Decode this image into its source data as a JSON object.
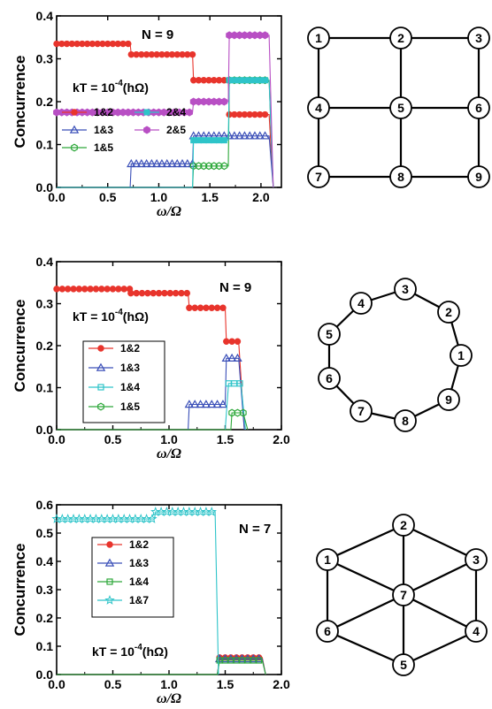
{
  "chart_data": [
    {
      "type": "line",
      "xlabel": "ω/Ω",
      "ylabel": "Concurrence",
      "xlim": [
        0,
        2.2
      ],
      "ylim": [
        0,
        0.4
      ],
      "xticks": [
        "0.0",
        "0.5",
        "1.0",
        "1.5",
        "2.0"
      ],
      "yticks": [
        "0.0",
        "0.1",
        "0.2",
        "0.3",
        "0.4"
      ],
      "annotations": [
        "N = 9",
        "kT = 10",
        "-4",
        "(hΩ)"
      ],
      "series": [
        {
          "name": "1&2",
          "color": "#e8342c",
          "marker": "circle-filled",
          "points": [
            [
              0.0,
              0.335
            ],
            [
              0.72,
              0.335
            ],
            [
              0.73,
              0.31
            ],
            [
              1.33,
              0.31
            ],
            [
              1.34,
              0.25
            ],
            [
              1.68,
              0.25
            ],
            [
              1.69,
              0.17
            ],
            [
              2.08,
              0.17
            ],
            [
              2.12,
              0.0
            ]
          ]
        },
        {
          "name": "1&3",
          "color": "#3a4fb8",
          "marker": "triangle-open",
          "points": [
            [
              0.0,
              0.0
            ],
            [
              0.72,
              0.0
            ],
            [
              0.73,
              0.055
            ],
            [
              1.33,
              0.055
            ],
            [
              1.34,
              0.12
            ],
            [
              2.08,
              0.12
            ],
            [
              2.12,
              0.0
            ]
          ]
        },
        {
          "name": "1&5",
          "color": "#2da83a",
          "marker": "hexagon-open",
          "points": [
            [
              0.0,
              0.0
            ],
            [
              1.33,
              0.0
            ],
            [
              1.34,
              0.05
            ],
            [
              1.68,
              0.05
            ],
            [
              1.69,
              0.25
            ],
            [
              2.08,
              0.25
            ],
            [
              2.12,
              0.0
            ]
          ]
        },
        {
          "name": "2&4",
          "color": "#2ec4c9",
          "marker": "square-filled",
          "points": [
            [
              0.0,
              0.0
            ],
            [
              1.33,
              0.0
            ],
            [
              1.34,
              0.11
            ],
            [
              1.68,
              0.11
            ],
            [
              1.69,
              0.25
            ],
            [
              2.08,
              0.25
            ],
            [
              2.12,
              0.0
            ]
          ]
        },
        {
          "name": "2&5",
          "color": "#b84fc4",
          "marker": "hexagon-filled",
          "points": [
            [
              0.0,
              0.175
            ],
            [
              1.33,
              0.175
            ],
            [
              1.34,
              0.2
            ],
            [
              1.68,
              0.2
            ],
            [
              1.69,
              0.355
            ],
            [
              2.08,
              0.355
            ],
            [
              2.12,
              0.0
            ]
          ]
        }
      ],
      "legend_position": "lower-left"
    },
    {
      "type": "line",
      "xlabel": "ω/Ω",
      "ylabel": "Concurrence",
      "xlim": [
        0,
        2.0
      ],
      "ylim": [
        0,
        0.4
      ],
      "xticks": [
        "0.0",
        "0.5",
        "1.0",
        "1.5",
        "2.0"
      ],
      "yticks": [
        "0.0",
        "0.1",
        "0.2",
        "0.3",
        "0.4"
      ],
      "annotations": [
        "N = 9",
        "kT = 10",
        "-4",
        "(hΩ)"
      ],
      "series": [
        {
          "name": "1&2",
          "color": "#e8342c",
          "marker": "circle-filled",
          "points": [
            [
              0.0,
              0.335
            ],
            [
              0.65,
              0.335
            ],
            [
              0.66,
              0.325
            ],
            [
              1.17,
              0.325
            ],
            [
              1.18,
              0.29
            ],
            [
              1.5,
              0.29
            ],
            [
              1.51,
              0.21
            ],
            [
              1.62,
              0.21
            ],
            [
              1.67,
              0.0
            ]
          ]
        },
        {
          "name": "1&3",
          "color": "#3a4fb8",
          "marker": "triangle-open",
          "points": [
            [
              0.0,
              0.0
            ],
            [
              1.17,
              0.0
            ],
            [
              1.18,
              0.06
            ],
            [
              1.5,
              0.06
            ],
            [
              1.51,
              0.17
            ],
            [
              1.62,
              0.17
            ],
            [
              1.67,
              0.0
            ]
          ]
        },
        {
          "name": "1&4",
          "color": "#2ec4c9",
          "marker": "square-open",
          "points": [
            [
              0.0,
              0.0
            ],
            [
              1.5,
              0.0
            ],
            [
              1.53,
              0.11
            ],
            [
              1.64,
              0.11
            ],
            [
              1.68,
              0.0
            ]
          ]
        },
        {
          "name": "1&5",
          "color": "#2da83a",
          "marker": "hexagon-open",
          "points": [
            [
              0.0,
              0.0
            ],
            [
              1.55,
              0.0
            ],
            [
              1.56,
              0.04
            ],
            [
              1.66,
              0.04
            ],
            [
              1.7,
              0.0
            ]
          ]
        }
      ],
      "legend_position": "lower-left"
    },
    {
      "type": "line",
      "xlabel": "ω/Ω",
      "ylabel": "Concurrence",
      "xlim": [
        0,
        2.0
      ],
      "ylim": [
        0,
        0.6
      ],
      "xticks": [
        "0.0",
        "0.5",
        "1.0",
        "1.5",
        "2.0"
      ],
      "yticks": [
        "0.0",
        "0.1",
        "0.2",
        "0.3",
        "0.4",
        "0.5",
        "0.6"
      ],
      "annotations": [
        "N = 7",
        "kT = 10",
        "-4",
        "(hΩ)"
      ],
      "series": [
        {
          "name": "1&2",
          "color": "#e8342c",
          "marker": "circle-filled",
          "points": [
            [
              0.0,
              0.0
            ],
            [
              1.43,
              0.0
            ],
            [
              1.45,
              0.06
            ],
            [
              1.83,
              0.06
            ],
            [
              1.86,
              0.0
            ]
          ]
        },
        {
          "name": "1&3",
          "color": "#3a4fb8",
          "marker": "triangle-open",
          "points": [
            [
              0.0,
              0.0
            ],
            [
              1.43,
              0.0
            ],
            [
              1.45,
              0.055
            ],
            [
              1.83,
              0.055
            ],
            [
              1.86,
              0.0
            ]
          ]
        },
        {
          "name": "1&4",
          "color": "#2da83a",
          "marker": "square-open",
          "points": [
            [
              0.0,
              0.0
            ],
            [
              1.43,
              0.0
            ],
            [
              1.45,
              0.05
            ],
            [
              1.83,
              0.05
            ],
            [
              1.86,
              0.0
            ]
          ]
        },
        {
          "name": "1&7",
          "color": "#2ec4c9",
          "marker": "star",
          "points": [
            [
              0.0,
              0.55
            ],
            [
              0.87,
              0.55
            ],
            [
              0.88,
              0.575
            ],
            [
              1.41,
              0.575
            ],
            [
              1.44,
              0.0
            ]
          ]
        }
      ],
      "legend_position": "upper-left"
    }
  ],
  "graphs": [
    {
      "nodes": [
        "1",
        "2",
        "3",
        "4",
        "5",
        "6",
        "7",
        "8",
        "9"
      ],
      "edges": [
        [
          1,
          2
        ],
        [
          2,
          3
        ],
        [
          4,
          5
        ],
        [
          5,
          6
        ],
        [
          7,
          8
        ],
        [
          8,
          9
        ],
        [
          1,
          4
        ],
        [
          4,
          7
        ],
        [
          2,
          5
        ],
        [
          5,
          8
        ],
        [
          3,
          6
        ],
        [
          6,
          9
        ]
      ]
    },
    {
      "nodes": [
        "1",
        "2",
        "3",
        "4",
        "5",
        "6",
        "7",
        "8",
        "9"
      ],
      "edges": [
        [
          1,
          2
        ],
        [
          2,
          3
        ],
        [
          3,
          4
        ],
        [
          4,
          5
        ],
        [
          5,
          6
        ],
        [
          6,
          7
        ],
        [
          7,
          8
        ],
        [
          8,
          9
        ],
        [
          9,
          1
        ]
      ]
    },
    {
      "nodes": [
        "1",
        "2",
        "3",
        "4",
        "5",
        "6",
        "7"
      ],
      "edges": [
        [
          1,
          2
        ],
        [
          2,
          3
        ],
        [
          3,
          4
        ],
        [
          4,
          5
        ],
        [
          5,
          6
        ],
        [
          6,
          1
        ],
        [
          7,
          1
        ],
        [
          7,
          2
        ],
        [
          7,
          3
        ],
        [
          7,
          4
        ],
        [
          7,
          5
        ],
        [
          7,
          6
        ]
      ]
    }
  ]
}
